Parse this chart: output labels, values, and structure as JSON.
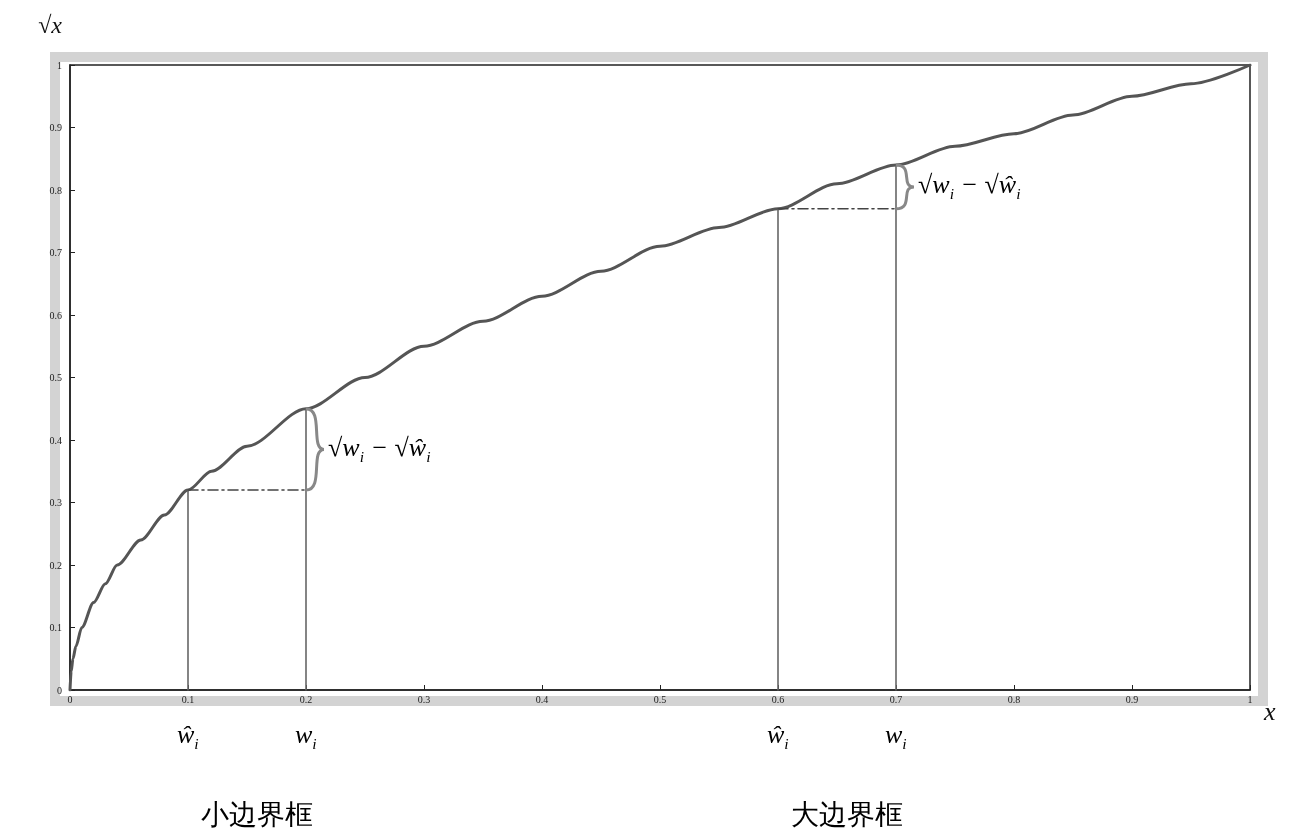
{
  "chart_data": {
    "type": "line",
    "xlabel": "x",
    "ylabel": "√x",
    "xlim": [
      0,
      1
    ],
    "xticks": [
      0,
      0.1,
      0.2,
      0.3,
      0.4,
      0.5,
      0.6,
      0.7,
      0.8,
      0.9,
      1
    ],
    "ylim": [
      0,
      1
    ],
    "yticks": [
      0,
      0.1,
      0.2,
      0.3,
      0.4,
      0.5,
      0.6,
      0.7,
      0.8,
      0.9,
      1
    ],
    "grid": false,
    "marker": "none",
    "series": [
      {
        "color": "#555555",
        "line_style": "solid",
        "x": [
          0,
          0.001,
          0.0025,
          0.005,
          0.01,
          0.02,
          0.03,
          0.04,
          0.06,
          0.08,
          0.1,
          0.12,
          0.15,
          0.2,
          0.25,
          0.3,
          0.35,
          0.4,
          0.45,
          0.5,
          0.55,
          0.6,
          0.65,
          0.7,
          0.75,
          0.8,
          0.85,
          0.9,
          0.95,
          1
        ],
        "values": [
          0,
          0.03,
          0.05,
          0.07,
          0.1,
          0.14,
          0.17,
          0.2,
          0.24,
          0.28,
          0.32,
          0.35,
          0.39,
          0.45,
          0.5,
          0.55,
          0.59,
          0.63,
          0.67,
          0.71,
          0.74,
          0.77,
          0.81,
          0.84,
          0.87,
          0.89,
          0.92,
          0.95,
          0.97,
          1
        ]
      },
      {
        "color": "#666666",
        "line_style": "solid",
        "x": [
          0.1,
          0.1
        ],
        "values": [
          0,
          0.32
        ]
      },
      {
        "color": "#666666",
        "line_style": "solid",
        "x": [
          0.2,
          0.2
        ],
        "values": [
          0,
          0.45
        ]
      },
      {
        "color": "#666666",
        "line_style": "solid",
        "x": [
          0.6,
          0.6
        ],
        "values": [
          0,
          0.77
        ]
      },
      {
        "color": "#666666",
        "line_style": "solid",
        "x": [
          0.7,
          0.7
        ],
        "values": [
          0,
          0.84
        ]
      },
      {
        "color": "#444444",
        "line_style": "dashed",
        "x": [
          0.1,
          0.2
        ],
        "values": [
          0.32,
          0.32
        ]
      },
      {
        "color": "#444444",
        "line_style": "dashed",
        "x": [
          0.6,
          0.7
        ],
        "values": [
          0.77,
          0.77
        ]
      }
    ],
    "annotations": [
      "ŵ$_{i}$",
      "w$_{i}$",
      "ŵ$_{i}$",
      "w$_{i}$",
      "√w$_{i}$ − √ŵ$_{i}$",
      "√w$_{i}$ − √ŵ$_{i}$",
      "小边界框",
      "大边界框"
    ]
  }
}
